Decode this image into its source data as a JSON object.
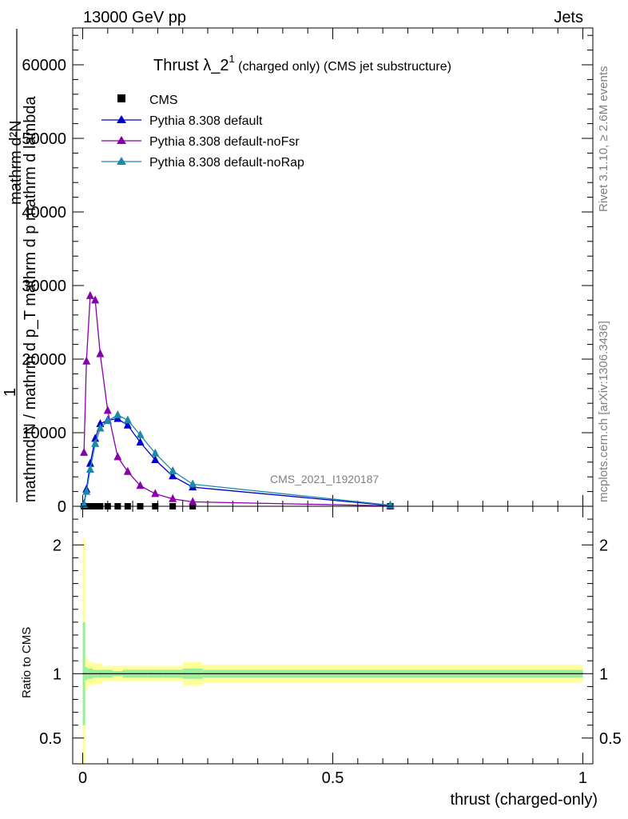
{
  "header": {
    "energy": "13000 GeV pp",
    "category": "Jets"
  },
  "side": {
    "rivet": "Rivet 3.1.10, ≥ 2.6M events",
    "source": "mcplots.cern.ch [arXiv:1306.3436]"
  },
  "chart_data": [
    {
      "type": "line",
      "title_main": "Thrust λ_2",
      "title_sup": "1",
      "title_rest": " (charged only) (CMS jet substructure)",
      "watermark": "CMS_2021_I1920187",
      "ylabel_num": "1",
      "ylabel_den1": "mathrmd N / mathrm d p",
      "ylabel_den2": "mathrm d p",
      "ylabel_full": "mathrmd N / mathrm d p_T mathrm d p mathrm d lambda",
      "ylabel_top": "mathrm d²N",
      "ylim": [
        0,
        65000
      ],
      "xlim": [
        -0.02,
        1.02
      ],
      "yticks": [
        "0",
        "10000",
        "20000",
        "30000",
        "40000",
        "50000",
        "60000"
      ],
      "ytick_values": [
        0,
        10000,
        20000,
        30000,
        40000,
        50000,
        60000
      ],
      "legend_position": "top-left",
      "series": [
        {
          "name": "CMS",
          "color": "#000000",
          "marker": "square",
          "x": [
            0.0025,
            0.0075,
            0.015,
            0.025,
            0.035,
            0.05,
            0.07,
            0.09,
            0.115,
            0.145,
            0.18,
            0.22,
            0.615
          ],
          "y": [
            0,
            0,
            0,
            0,
            0,
            0,
            0,
            0,
            0,
            0,
            0,
            0,
            0
          ]
        },
        {
          "name": "Pythia 8.308 default",
          "color": "#0000cc",
          "marker": "triangle",
          "x": [
            0.0025,
            0.0075,
            0.015,
            0.025,
            0.035,
            0.05,
            0.07,
            0.09,
            0.115,
            0.145,
            0.18,
            0.22,
            0.615
          ],
          "y": [
            300,
            2300,
            5800,
            9200,
            11200,
            11700,
            11900,
            11000,
            8700,
            6300,
            4100,
            2600,
            100
          ]
        },
        {
          "name": "Pythia 8.308 default-noFsr",
          "color": "#8800aa",
          "marker": "triangle",
          "x": [
            0.0025,
            0.0075,
            0.015,
            0.025,
            0.035,
            0.05,
            0.07,
            0.09,
            0.115,
            0.145,
            0.18,
            0.22,
            0.615
          ],
          "y": [
            7300,
            19700,
            28600,
            28000,
            20700,
            13000,
            6700,
            4700,
            2800,
            1700,
            1000,
            600,
            50
          ]
        },
        {
          "name": "Pythia 8.308 default-noRap",
          "color": "#1a8aaa",
          "marker": "triangle",
          "x": [
            0.0025,
            0.0075,
            0.015,
            0.025,
            0.035,
            0.05,
            0.07,
            0.09,
            0.115,
            0.145,
            0.18,
            0.22,
            0.615
          ],
          "y": [
            200,
            2000,
            5000,
            8500,
            10600,
            11600,
            12400,
            11700,
            9700,
            7200,
            4800,
            3000,
            150
          ]
        }
      ]
    },
    {
      "type": "area",
      "ylabel": "Ratio to CMS",
      "xlabel": "thrust (charged-only)",
      "ylim": [
        0.3,
        2.3
      ],
      "xlim": [
        -0.02,
        1.02
      ],
      "yticks": [
        "0.5",
        "1",
        "2"
      ],
      "ytick_values": [
        0.5,
        1,
        2
      ],
      "xticks": [
        "0",
        "0.5",
        "1"
      ],
      "xtick_values": [
        0,
        0.5,
        1
      ],
      "reference": 1,
      "bin_edges": [
        0,
        0.005,
        0.01,
        0.02,
        0.03,
        0.04,
        0.06,
        0.08,
        0.1,
        0.13,
        0.16,
        0.2,
        0.24,
        1.0
      ],
      "band_stat": [
        0.4,
        0.05,
        0.04,
        0.03,
        0.03,
        0.03,
        0.02,
        0.03,
        0.03,
        0.03,
        0.03,
        0.04,
        0.03
      ],
      "band_total": [
        1.05,
        0.13,
        0.09,
        0.08,
        0.08,
        0.06,
        0.06,
        0.06,
        0.06,
        0.06,
        0.06,
        0.09,
        0.07
      ],
      "stat_color": "#99ee99",
      "total_color": "#ffff99"
    }
  ]
}
